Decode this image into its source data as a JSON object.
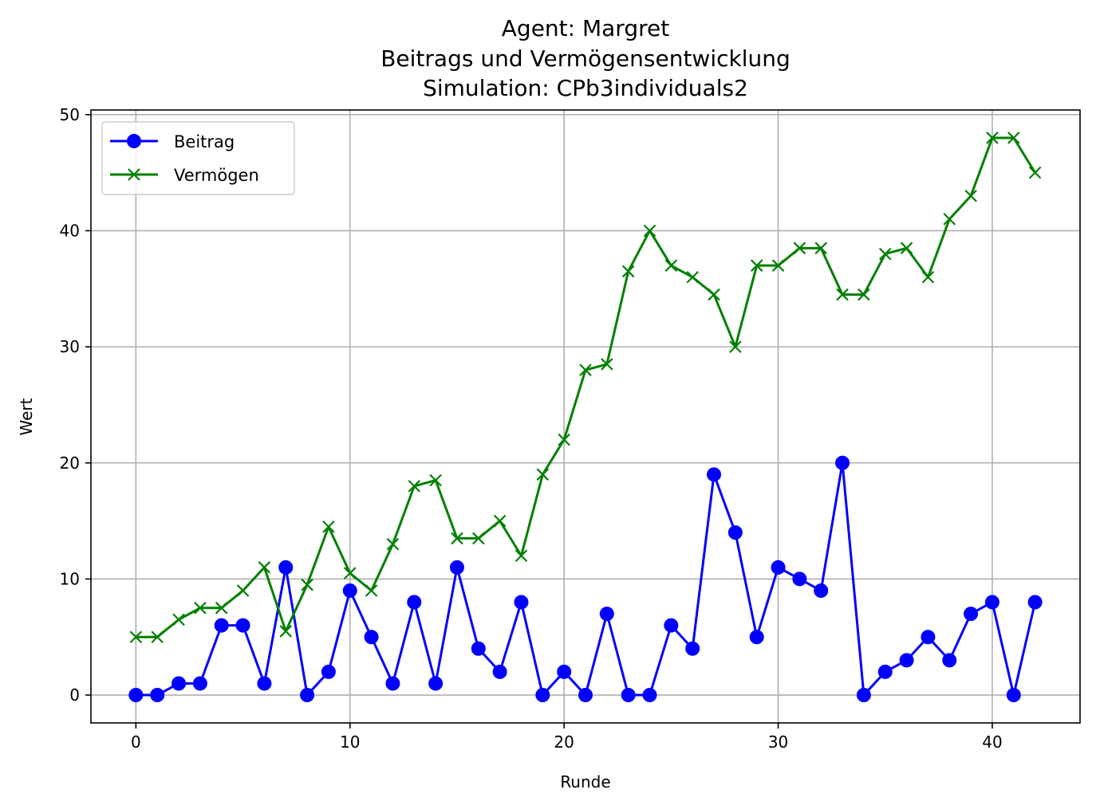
{
  "chart_data": {
    "type": "line",
    "title_lines": [
      "Agent: Margret",
      "Beitrags und Vermögensentwicklung",
      "Simulation: CPb3individuals2"
    ],
    "xlabel": "Runde",
    "ylabel": "Wert",
    "xlim": [
      -2.1,
      44.1
    ],
    "ylim": [
      -2.4,
      50.4
    ],
    "xticks": [
      0,
      10,
      20,
      30,
      40
    ],
    "yticks": [
      0,
      10,
      20,
      30,
      40,
      50
    ],
    "grid": true,
    "legend_position": "upper-left",
    "x": [
      0,
      1,
      2,
      3,
      4,
      5,
      6,
      7,
      8,
      9,
      10,
      11,
      12,
      13,
      14,
      15,
      16,
      17,
      18,
      19,
      20,
      21,
      22,
      23,
      24,
      25,
      26,
      27,
      28,
      29,
      30,
      31,
      32,
      33,
      34,
      35,
      36,
      37,
      38,
      39,
      40,
      41,
      42
    ],
    "series": [
      {
        "name": "Beitrag",
        "color": "#0000ff",
        "marker": "circle",
        "values": [
          0,
          0,
          1,
          1,
          6,
          6,
          1,
          11,
          0,
          2,
          9,
          5,
          1,
          8,
          1,
          11,
          4,
          2,
          8,
          0,
          2,
          0,
          7,
          0,
          0,
          6,
          4,
          19,
          14,
          5,
          11,
          10,
          9,
          20,
          0,
          2,
          3,
          5,
          3,
          7,
          8,
          0,
          8
        ]
      },
      {
        "name": "Vermögen",
        "color": "#008000",
        "marker": "x",
        "values": [
          5,
          5,
          6.5,
          7.5,
          7.5,
          9,
          11,
          5.5,
          9.5,
          14.5,
          10.5,
          9,
          13,
          18,
          18.5,
          13.5,
          13.5,
          15,
          12,
          19,
          22,
          28,
          28.5,
          36.5,
          40,
          37,
          36,
          34.5,
          30,
          37,
          37,
          38.5,
          38.5,
          34.5,
          34.5,
          38,
          38.5,
          36,
          41,
          43,
          48,
          48,
          45
        ]
      }
    ]
  }
}
